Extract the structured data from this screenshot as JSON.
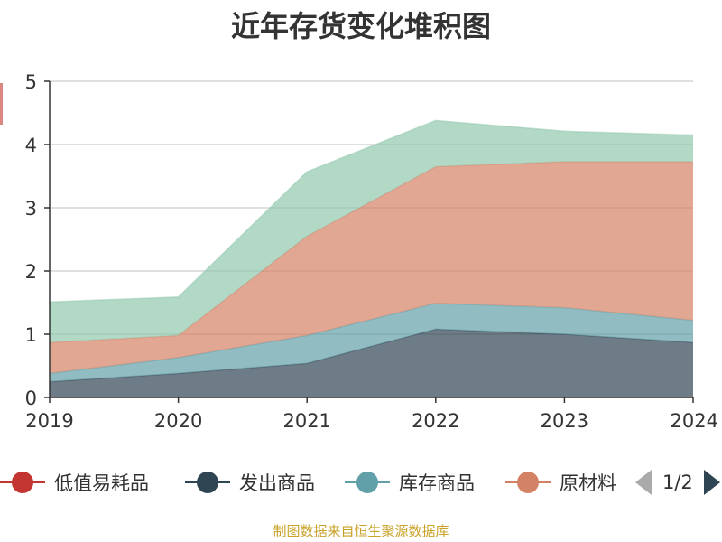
{
  "chart_data": {
    "type": "area",
    "title": "近年存货变化堆积图",
    "x": [
      "2019",
      "2020",
      "2021",
      "2022",
      "2023",
      "2024"
    ],
    "ylim": [
      0,
      5
    ],
    "yticks": [
      0,
      1,
      2,
      3,
      4,
      5
    ],
    "grid": true,
    "stacked": true,
    "legend_position": "bottom",
    "series": [
      {
        "name": "低值易耗品",
        "color": "#c23531",
        "values": [
          0.0,
          0.0,
          0.0,
          0.0,
          0.0,
          0.0
        ]
      },
      {
        "name": "发出商品",
        "color": "#2f4554",
        "values": [
          0.25,
          0.38,
          0.54,
          1.08,
          1.0,
          0.87
        ]
      },
      {
        "name": "库存商品",
        "color": "#61a0a8",
        "values": [
          0.13,
          0.25,
          0.44,
          0.41,
          0.42,
          0.35
        ]
      },
      {
        "name": "原材料",
        "color": "#d48265",
        "values": [
          0.49,
          0.35,
          1.57,
          2.16,
          2.31,
          2.51
        ]
      },
      {
        "name": "",
        "color": "#91c7ae",
        "values": [
          0.64,
          0.61,
          1.02,
          0.73,
          0.48,
          0.42
        ]
      }
    ]
  },
  "legend": {
    "page": "1/2"
  },
  "footer": "制图数据来自恒生聚源数据库"
}
